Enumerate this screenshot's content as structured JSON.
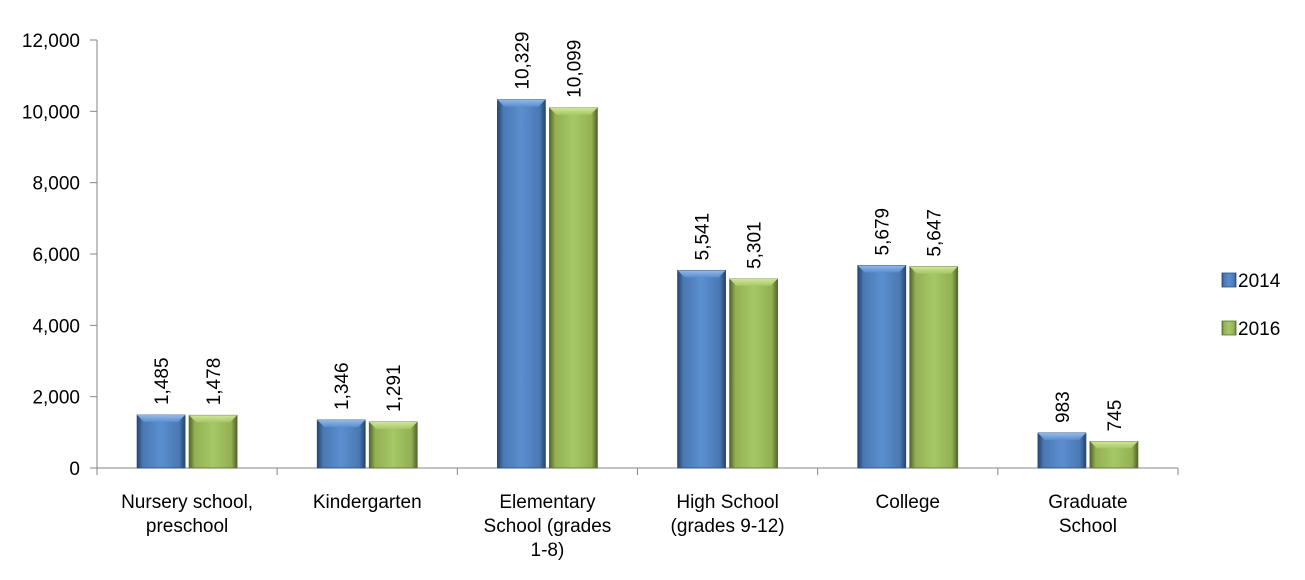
{
  "chart_data": {
    "type": "bar",
    "categories": [
      [
        "Nursery school,",
        "preschool"
      ],
      [
        "Kindergarten"
      ],
      [
        "Elementary",
        "School (grades",
        "1-8)"
      ],
      [
        "High School",
        "(grades 9-12)"
      ],
      [
        "College"
      ],
      [
        "Graduate",
        "School"
      ]
    ],
    "series": [
      {
        "name": "2014",
        "values": [
          1485,
          1346,
          10329,
          5541,
          5679,
          983
        ],
        "labels": [
          "1,485",
          "1,346",
          "10,329",
          "5,541",
          "5,679",
          "983"
        ],
        "color": "#4f81bd"
      },
      {
        "name": "2016",
        "values": [
          1478,
          1291,
          10099,
          5301,
          5647,
          745
        ],
        "labels": [
          "1,478",
          "1,291",
          "10,099",
          "5,301",
          "5,647",
          "745"
        ],
        "color": "#9bbb59"
      }
    ],
    "ylim": [
      0,
      12000
    ],
    "yticks": [
      0,
      2000,
      4000,
      6000,
      8000,
      10000,
      12000
    ],
    "ytick_labels": [
      "0",
      "2,000",
      "4,000",
      "6,000",
      "8,000",
      "10,000",
      "12,000"
    ],
    "grid": false,
    "legend_position": "right",
    "title": "",
    "xlabel": "",
    "ylabel": ""
  }
}
